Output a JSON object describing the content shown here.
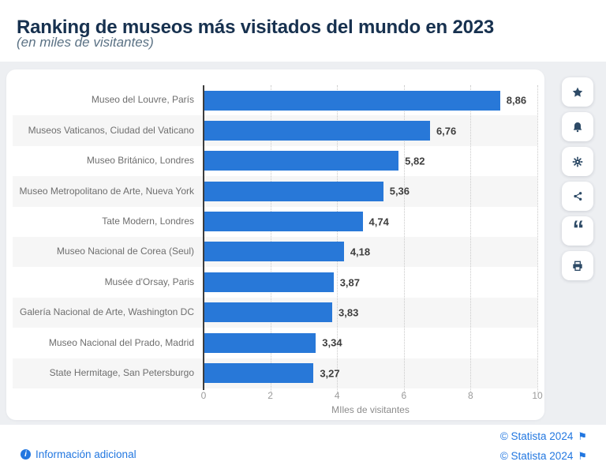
{
  "header": {
    "title": "Ranking de museos más visitados del mundo en 2023",
    "subtitle": "(en miles de visitantes)"
  },
  "chart_data": {
    "type": "bar",
    "orientation": "horizontal",
    "title": "Ranking de museos más visitados del mundo en 2023",
    "subtitle": "(en miles de visitantes)",
    "categories": [
      "Museo del Louvre, París",
      "Museos Vaticanos, Ciudad del Vaticano",
      "Museo Británico, Londres",
      "Museo Metropolitano de Arte, Nueva York",
      "Tate Modern, Londres",
      "Museo Nacional de Corea (Seul)",
      "Musée d'Orsay, Paris",
      "Galería Nacional de Arte, Washington DC",
      "Museo Nacional del Prado, Madrid",
      "State Hermitage, San Petersburgo"
    ],
    "values": [
      8.86,
      6.76,
      5.82,
      5.36,
      4.74,
      4.18,
      3.87,
      3.83,
      3.34,
      3.27
    ],
    "value_labels": [
      "8,86",
      "6,76",
      "5,82",
      "5,36",
      "4,74",
      "4,18",
      "3,87",
      "3,83",
      "3,34",
      "3,27"
    ],
    "xlabel": "MIles de visitantes",
    "x_ticks": [
      "0",
      "2",
      "4",
      "6",
      "8",
      "10"
    ],
    "xlim": [
      0,
      10
    ],
    "bar_color": "#2878d8",
    "grid": "vertical-dotted",
    "row_stripe_color": "#f6f6f6",
    "legend": "none"
  },
  "toolbar": {
    "buttons": [
      {
        "name": "favorite",
        "icon": "star-icon"
      },
      {
        "name": "alerts",
        "icon": "bell-icon"
      },
      {
        "name": "settings",
        "icon": "gear-icon"
      },
      {
        "name": "share",
        "icon": "share-icon"
      },
      {
        "name": "cite",
        "icon": "quote-icon"
      },
      {
        "name": "print",
        "icon": "printer-icon"
      }
    ]
  },
  "footer": {
    "copyright": "© Statista 2024",
    "flag": "⚑",
    "info_link": "Información adicional",
    "link_color": "#2277e0"
  }
}
